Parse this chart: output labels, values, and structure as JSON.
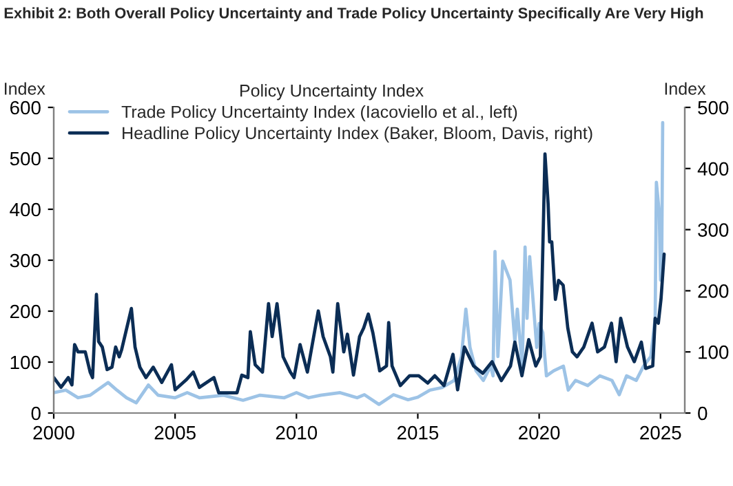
{
  "chart_data": {
    "type": "line",
    "title": "Exhibit 2: Both Overall Policy Uncertainty and Trade Policy Uncertainty Specifically Are Very High",
    "legend_title": "Policy Uncertainty Index",
    "ylabel": "Index",
    "y2label": "Index",
    "xlim": [
      2000,
      2026
    ],
    "xticks": [
      2000,
      2005,
      2010,
      2015,
      2020,
      2025
    ],
    "ylim": [
      0,
      600
    ],
    "yticks": [
      0,
      100,
      200,
      300,
      400,
      500,
      600
    ],
    "y2lim": [
      0,
      500
    ],
    "y2ticks": [
      0,
      100,
      200,
      300,
      400,
      500
    ],
    "grid": false,
    "legend": "top",
    "marker": "none",
    "line_style": "solid",
    "series": [
      {
        "name": "Trade Policy Uncertainty Index (Iacoviello et al., left)",
        "color": "#9dc3e6",
        "axis": "y",
        "x": [
          2000.0,
          2000.5,
          2001.0,
          2001.5,
          2002.24,
          2002.6,
          2003.0,
          2003.4,
          2003.9,
          2004.3,
          2005.0,
          2005.5,
          2006.0,
          2007.0,
          2007.8,
          2008.5,
          2009.5,
          2010.0,
          2010.5,
          2011.0,
          2011.8,
          2012.5,
          2012.8,
          2013.4,
          2014.0,
          2014.6,
          2015.0,
          2015.5,
          2016.0,
          2016.5,
          2016.8,
          2016.98,
          2017.15,
          2017.4,
          2017.7,
          2018.0,
          2018.1,
          2018.18,
          2018.3,
          2018.5,
          2018.8,
          2019.0,
          2019.1,
          2019.3,
          2019.42,
          2019.5,
          2019.61,
          2019.9,
          2020.0,
          2020.15,
          2020.3,
          2020.6,
          2021.0,
          2021.2,
          2021.5,
          2022.0,
          2022.5,
          2023.0,
          2023.3,
          2023.6,
          2024.0,
          2024.3,
          2024.6,
          2024.78,
          2024.83,
          2024.95,
          2025.0,
          2025.05,
          2025.09
        ],
        "values": [
          40,
          45,
          30,
          35,
          60,
          45,
          30,
          20,
          55,
          35,
          30,
          40,
          30,
          35,
          25,
          35,
          30,
          40,
          30,
          35,
          40,
          30,
          36,
          17,
          36,
          26,
          31,
          45,
          50,
          64,
          111,
          204,
          129,
          83,
          64,
          92,
          73,
          317,
          111,
          298,
          261,
          139,
          204,
          92,
          326,
          186,
          307,
          129,
          176,
          158,
          73,
          83,
          92,
          45,
          64,
          54,
          73,
          64,
          36,
          73,
          64,
          92,
          111,
          186,
          453,
          392,
          261,
          298,
          570
        ]
      },
      {
        "name": "Headline Policy Uncertainty Index (Baker, Bloom, Davis, right)",
        "color": "#0b2d55",
        "axis": "y2",
        "x": [
          2000.0,
          2000.3,
          2000.6,
          2000.75,
          2000.86,
          2001.0,
          2001.3,
          2001.5,
          2001.6,
          2001.76,
          2001.85,
          2002.0,
          2002.2,
          2002.4,
          2002.55,
          2002.7,
          2002.8,
          2003.2,
          2003.35,
          2003.55,
          2003.8,
          2004.1,
          2004.45,
          2004.85,
          2005.0,
          2005.45,
          2005.75,
          2006.0,
          2006.6,
          2006.8,
          2007.55,
          2007.75,
          2008.0,
          2008.1,
          2008.3,
          2008.6,
          2008.85,
          2009.0,
          2009.2,
          2009.45,
          2009.75,
          2009.9,
          2010.15,
          2010.45,
          2010.9,
          2011.1,
          2011.4,
          2011.5,
          2011.7,
          2011.95,
          2012.1,
          2012.35,
          2012.6,
          2012.77,
          2012.96,
          2013.15,
          2013.43,
          2013.71,
          2013.8,
          2013.94,
          2014.28,
          2014.66,
          2015.04,
          2015.41,
          2015.7,
          2016.08,
          2016.45,
          2016.64,
          2016.92,
          2017.3,
          2017.68,
          2018.06,
          2018.44,
          2018.82,
          2019.0,
          2019.29,
          2019.57,
          2019.86,
          2020.05,
          2020.24,
          2020.37,
          2020.43,
          2020.52,
          2020.67,
          2020.8,
          2020.99,
          2021.18,
          2021.37,
          2021.56,
          2021.84,
          2022.18,
          2022.41,
          2022.69,
          2022.98,
          2023.17,
          2023.36,
          2023.64,
          2023.92,
          2024.21,
          2024.39,
          2024.68,
          2024.78,
          2024.91,
          2025.02,
          2025.15
        ],
        "values": [
          58,
          42,
          58,
          46,
          112,
          100,
          100,
          67,
          58,
          194,
          117,
          108,
          71,
          75,
          108,
          92,
          104,
          171,
          108,
          75,
          58,
          75,
          50,
          79,
          38,
          54,
          67,
          42,
          58,
          33,
          33,
          62,
          58,
          133,
          79,
          67,
          179,
          125,
          179,
          92,
          67,
          58,
          112,
          67,
          167,
          125,
          92,
          67,
          179,
          100,
          129,
          62,
          125,
          139,
          162,
          131,
          69,
          77,
          148,
          77,
          45,
          61,
          61,
          49,
          61,
          45,
          96,
          38,
          108,
          77,
          65,
          84,
          53,
          77,
          116,
          61,
          120,
          77,
          92,
          424,
          342,
          280,
          280,
          186,
          217,
          209,
          139,
          100,
          92,
          108,
          147,
          100,
          108,
          147,
          84,
          155,
          108,
          84,
          116,
          73,
          77,
          155,
          147,
          186,
          260
        ]
      }
    ]
  }
}
